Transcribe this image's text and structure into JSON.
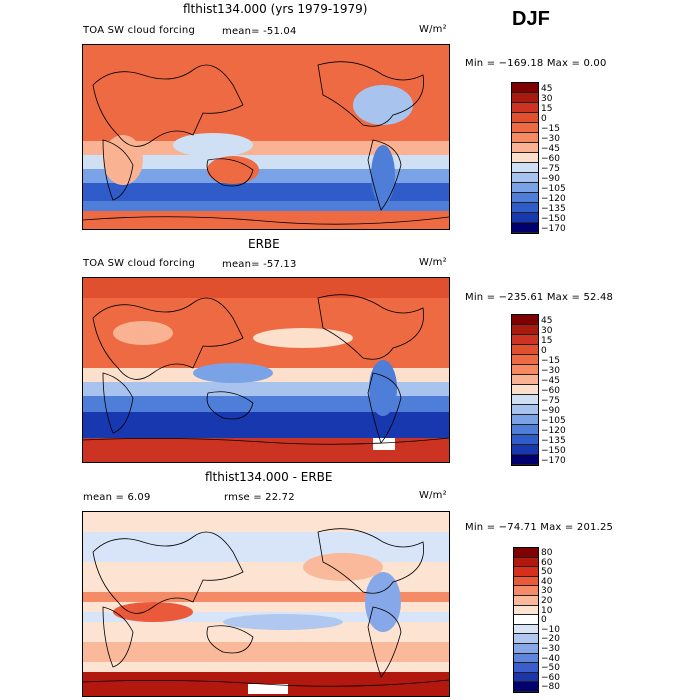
{
  "season": "DJF",
  "units": "W/m²",
  "panels": [
    {
      "title": "flthist134.000 (yrs 1979-1979)",
      "field_label": "TOA SW cloud forcing",
      "mean_label": "mean= -51.04",
      "minmax_label": "Min = −169.18 Max =    0.00",
      "colorbar": [
        "45",
        "30",
        "15",
        "0",
        "−15",
        "−30",
        "−45",
        "−60",
        "−75",
        "−90",
        "−105",
        "−120",
        "−135",
        "−150",
        "−170"
      ]
    },
    {
      "title": "ERBE",
      "field_label": "TOA SW cloud forcing",
      "mean_label": "mean= -57.13",
      "minmax_label": "Min = −235.61 Max =  52.48",
      "colorbar": [
        "45",
        "30",
        "15",
        "0",
        "−15",
        "−30",
        "−45",
        "−60",
        "−75",
        "−90",
        "−105",
        "−120",
        "−135",
        "−150",
        "−170"
      ]
    },
    {
      "title": "flthist134.000 - ERBE",
      "mean_label": "mean =    6.09",
      "rmse_label": "rmse =   22.72",
      "minmax_label": "Min = −74.71 Max = 201.25",
      "colorbar": [
        "80",
        "60",
        "50",
        "40",
        "30",
        "20",
        "10",
        "0",
        "−10",
        "−20",
        "−30",
        "−40",
        "−50",
        "−60",
        "−80"
      ]
    }
  ],
  "colors": {
    "abs_scale": [
      "#7f0000",
      "#a81a10",
      "#cc3322",
      "#e0502f",
      "#ee6a42",
      "#f58a62",
      "#f9b392",
      "#fde0cc",
      "#cfdff4",
      "#a8c4ee",
      "#7aa2e6",
      "#4f7ed8",
      "#2f5cc8",
      "#1838b0",
      "#00006e"
    ],
    "diff_scale": [
      "#7f0000",
      "#b2180e",
      "#d6301d",
      "#ea5a3a",
      "#f48a66",
      "#f9b99a",
      "#fde3d1",
      "#ffffff",
      "#d8e4f7",
      "#b0c8f0",
      "#87a8e8",
      "#5e84dc",
      "#3a5fcc",
      "#1a36aa",
      "#00006e"
    ]
  }
}
